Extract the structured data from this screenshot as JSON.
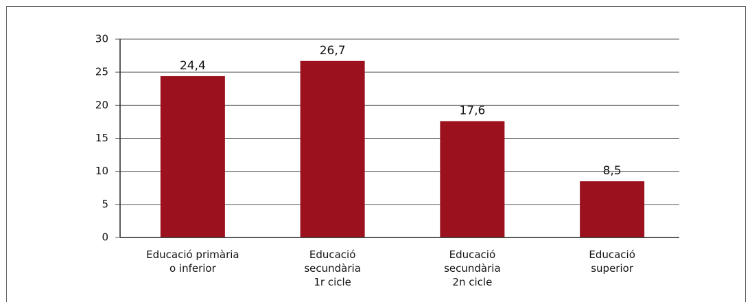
{
  "chart_data": {
    "type": "bar",
    "categories": [
      "Educació primària\no inferior",
      "Educació\nsecundària\n1r cicle",
      "Educació\nsecundària\n2n cicle",
      "Educació\nsuperior"
    ],
    "values": [
      24.4,
      26.7,
      17.6,
      8.5
    ],
    "value_labels": [
      "24,4",
      "26,7",
      "17,6",
      "8,5"
    ],
    "color": "#9b111e",
    "ylim": [
      0,
      30
    ],
    "yticks": [
      0,
      5,
      10,
      15,
      20,
      25,
      30
    ],
    "grid": true
  }
}
